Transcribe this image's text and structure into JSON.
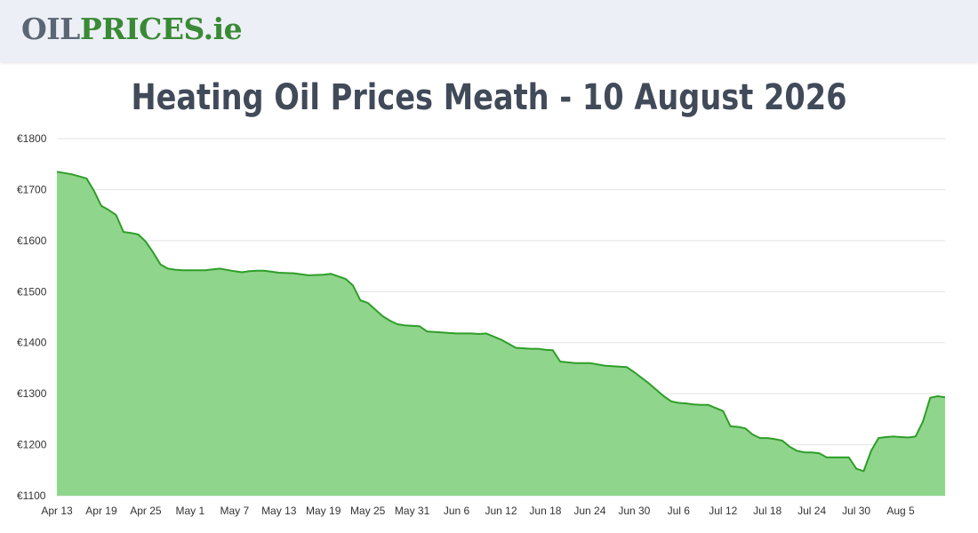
{
  "header": {
    "logo_part1": "OIL",
    "logo_part2": "PRICES.ie"
  },
  "colors": {
    "topbar_bg": "#eceff6",
    "logo_gray": "#5c6573",
    "logo_green": "#3a8a35",
    "title": "#414a59",
    "area_fill": "#90d58c",
    "line": "#2e9e28",
    "grid": "#e3e3e3"
  },
  "chart_data": {
    "type": "area",
    "title": "Heating Oil Prices Meath - 10 August 2026",
    "xlabel": "",
    "ylabel": "",
    "x_ticks": [
      "Apr 13",
      "Apr 19",
      "Apr 25",
      "May 1",
      "May 7",
      "May 13",
      "May 19",
      "May 25",
      "May 31",
      "Jun 6",
      "Jun 12",
      "Jun 18",
      "Jun 24",
      "Jun 30",
      "Jul 6",
      "Jul 12",
      "Jul 18",
      "Jul 24",
      "Jul 30",
      "Aug 5"
    ],
    "y_ticks": [
      "€1100",
      "€1200",
      "€1300",
      "€1400",
      "€1500",
      "€1600",
      "€1700",
      "€1800"
    ],
    "ylim": [
      1100,
      1800
    ],
    "x_day_range": [
      0,
      120
    ],
    "grid": true,
    "series": [
      {
        "x": [
          0,
          2,
          4,
          5,
          6,
          7,
          8,
          9,
          10,
          11,
          12,
          13,
          14,
          15,
          16,
          17,
          18,
          20,
          22,
          24,
          25,
          26,
          27,
          28,
          30,
          32,
          34,
          36,
          37,
          38,
          39,
          40,
          41,
          42,
          43,
          44,
          45,
          46,
          47,
          48,
          49,
          50,
          52,
          54,
          56,
          57,
          58,
          60,
          62,
          64,
          65,
          66,
          67,
          68,
          70,
          72,
          74,
          76,
          77,
          78,
          80,
          82,
          83,
          84,
          85,
          86,
          87,
          88,
          90,
          91,
          92,
          93,
          94,
          95,
          96,
          97,
          98,
          99,
          100,
          101,
          102,
          103,
          104,
          105,
          106,
          107,
          108,
          109,
          110,
          111,
          112,
          113,
          114,
          115,
          116,
          117,
          118,
          119,
          120
        ],
        "y": [
          1735,
          1730,
          1722,
          1698,
          1668,
          1660,
          1650,
          1617,
          1615,
          1612,
          1598,
          1577,
          1553,
          1545,
          1543,
          1542,
          1542,
          1542,
          1545,
          1540,
          1538,
          1540,
          1541,
          1541,
          1537,
          1536,
          1532,
          1533,
          1535,
          1530,
          1525,
          1512,
          1483,
          1478,
          1465,
          1452,
          1443,
          1436,
          1434,
          1433,
          1432,
          1422,
          1420,
          1418,
          1418,
          1417,
          1418,
          1406,
          1390,
          1388,
          1388,
          1386,
          1385,
          1363,
          1360,
          1360,
          1355,
          1353,
          1352,
          1342,
          1320,
          1295,
          1285,
          1282,
          1281,
          1279,
          1278,
          1278,
          1266,
          1236,
          1235,
          1232,
          1220,
          1213,
          1213,
          1211,
          1208,
          1196,
          1188,
          1185,
          1185,
          1183,
          1175,
          1175,
          1175,
          1175,
          1153,
          1148,
          1188,
          1213,
          1215,
          1216,
          1215,
          1214,
          1216,
          1245,
          1292,
          1295,
          1293
        ]
      }
    ]
  }
}
